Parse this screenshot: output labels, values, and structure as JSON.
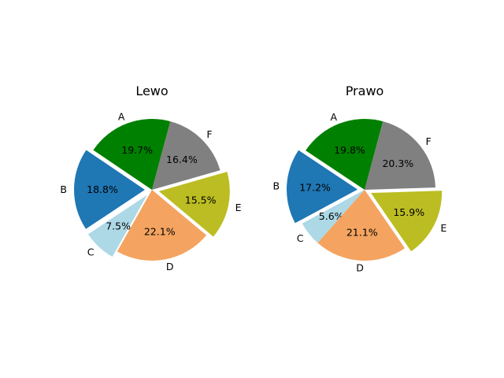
{
  "chart_data": [
    {
      "type": "pie",
      "title": "Lewo",
      "start_angle": 75,
      "categories": [
        "A",
        "B",
        "C",
        "D",
        "E",
        "F"
      ],
      "values": [
        19.7,
        18.8,
        7.5,
        22.1,
        15.5,
        16.4
      ],
      "value_labels": [
        "19.7%",
        "18.8%",
        "7.5%",
        "22.1%",
        "15.5%",
        "16.4%"
      ],
      "exploded": [
        "B",
        "C",
        "E"
      ],
      "colors": [
        "#008000",
        "#1f77b4",
        "#add8e6",
        "#f4a460",
        "#bcbd22",
        "#808080"
      ]
    },
    {
      "type": "pie",
      "title": "Prawo",
      "start_angle": 75,
      "categories": [
        "A",
        "B",
        "C",
        "D",
        "E",
        "F"
      ],
      "values": [
        19.8,
        17.2,
        5.6,
        21.1,
        15.9,
        20.3
      ],
      "value_labels": [
        "19.8%",
        "17.2%",
        "5.6%",
        "21.1%",
        "15.9%",
        "20.3%"
      ],
      "exploded": [
        "B",
        "E"
      ],
      "colors": [
        "#008000",
        "#1f77b4",
        "#add8e6",
        "#f4a460",
        "#bcbd22",
        "#808080"
      ]
    }
  ]
}
